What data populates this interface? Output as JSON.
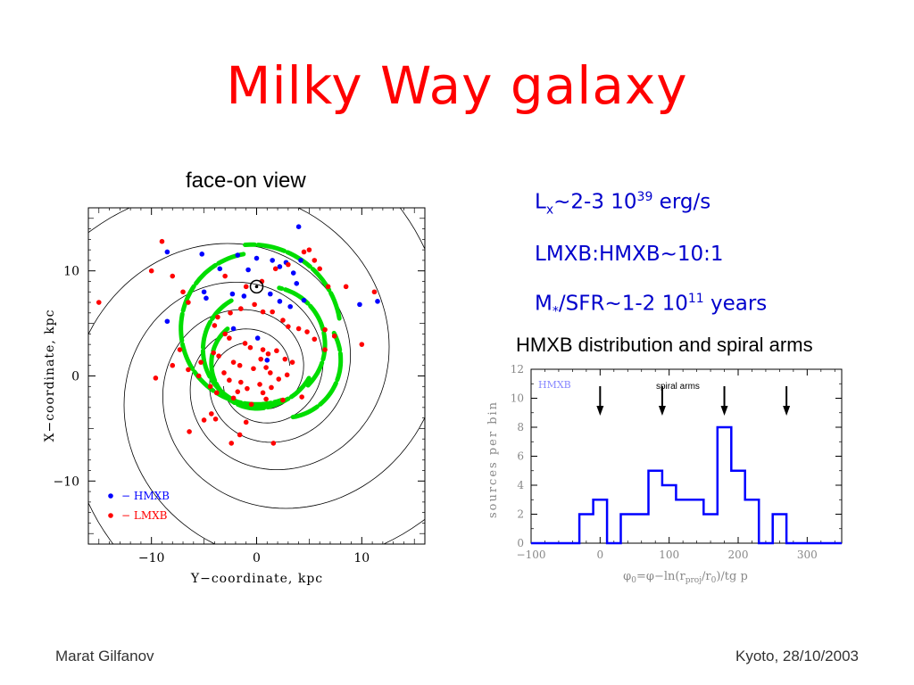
{
  "slide": {
    "title": "Milky Way galaxy",
    "left_heading": "face-on view",
    "right_heading": "HMXB distribution and spiral arms",
    "stats": {
      "line1_a": "L",
      "line1_sub": "x",
      "line1_b": "~2-3 10",
      "line1_sup": "39",
      "line1_c": " erg/s",
      "line2": "LMXB:HMXB~10:1",
      "line3_a": "M",
      "line3_sub": "*",
      "line3_b": "/SFR~1-2 10",
      "line3_sup": "11",
      "line3_c": " years"
    },
    "footer_left": "Marat Gilfanov",
    "footer_right": "Kyoto, 28/10/2003",
    "colors": {
      "title": "#ff0000",
      "stats": "#0000cc",
      "hmxb": "#0000ff",
      "lmxb": "#ff0000",
      "arm": "#00dd00"
    }
  },
  "chart_data": [
    {
      "type": "scatter",
      "xlabel": "Y−coordinate, kpc",
      "ylabel": "X−coordinate, kpc",
      "xlim": [
        -16,
        16
      ],
      "ylim": [
        -16,
        16
      ],
      "xticks": [
        -10,
        0,
        10
      ],
      "xtick_labels": [
        "−10",
        "0",
        "10"
      ],
      "yticks": [
        -10,
        0,
        10
      ],
      "ytick_labels": [
        "−10",
        "0",
        "10"
      ],
      "legend": [
        {
          "marker": "•",
          "label": "−  HMXB",
          "color": "#0000ff"
        },
        {
          "marker": "•",
          "label": "−  LMXB",
          "color": "#ff0000"
        }
      ],
      "legend_position": "bottom-left",
      "sun_marker": {
        "x": 0,
        "y": 8.5
      },
      "series": [
        {
          "name": "HMXB",
          "color": "#0000ff",
          "points": [
            [
              4,
              14.2
            ],
            [
              -8.5,
              11.8
            ],
            [
              -5.2,
              11.6
            ],
            [
              -1.8,
              11.5
            ],
            [
              0,
              11.2
            ],
            [
              1.5,
              11
            ],
            [
              2.8,
              10.8
            ],
            [
              4.2,
              11
            ],
            [
              -3.5,
              10.2
            ],
            [
              -0.8,
              10.1
            ],
            [
              2.2,
              10.4
            ],
            [
              3.5,
              9.8
            ],
            [
              -5,
              8
            ],
            [
              -4.8,
              7.4
            ],
            [
              -2.3,
              7.8
            ],
            [
              -1.2,
              7.6
            ],
            [
              1.3,
              7.8
            ],
            [
              2.2,
              7.1
            ],
            [
              4.5,
              7.2
            ],
            [
              -8.5,
              5.2
            ],
            [
              -2.2,
              4.5
            ],
            [
              0.1,
              3.6
            ],
            [
              3.2,
              6.6
            ],
            [
              1,
              1.5
            ],
            [
              9.8,
              6.8
            ],
            [
              11.5,
              7.1
            ],
            [
              3.8,
              8.8
            ]
          ]
        },
        {
          "name": "LMXB",
          "color": "#ff0000",
          "points": [
            [
              -9,
              12.8
            ],
            [
              -10,
              10
            ],
            [
              -8,
              9.5
            ],
            [
              -15,
              7
            ],
            [
              -7,
              8
            ],
            [
              -6.5,
              7
            ],
            [
              -3,
              9.5
            ],
            [
              -1,
              8.5
            ],
            [
              0.5,
              9
            ],
            [
              1.8,
              10.2
            ],
            [
              3,
              10.6
            ],
            [
              4.5,
              11.8
            ],
            [
              5,
              12
            ],
            [
              5.5,
              11
            ],
            [
              6,
              10.2
            ],
            [
              6.8,
              8.5
            ],
            [
              8.5,
              8.5
            ],
            [
              11.2,
              8
            ],
            [
              -2.5,
              6
            ],
            [
              -1.5,
              6.4
            ],
            [
              -0.2,
              6.8
            ],
            [
              0.6,
              6.1
            ],
            [
              1.5,
              6.1
            ],
            [
              2.5,
              5.3
            ],
            [
              3,
              4.7
            ],
            [
              4,
              4.5
            ],
            [
              4.8,
              4.2
            ],
            [
              5.5,
              3.5
            ],
            [
              6.5,
              2.5
            ],
            [
              7.4,
              3.8
            ],
            [
              10,
              3
            ],
            [
              6.5,
              4.4
            ],
            [
              -3.7,
              5.6
            ],
            [
              -4,
              4.8
            ],
            [
              -3,
              4
            ],
            [
              -2.6,
              3.6
            ],
            [
              -1.1,
              3.1
            ],
            [
              -0.6,
              2.7
            ],
            [
              0.6,
              2.5
            ],
            [
              1.1,
              2.1
            ],
            [
              1.9,
              2.4
            ],
            [
              2.7,
              1.6
            ],
            [
              3.4,
              1.3
            ],
            [
              -4.1,
              2.2
            ],
            [
              -3.6,
              1.9
            ],
            [
              -2.2,
              1.3
            ],
            [
              -1.6,
              1.0
            ],
            [
              -0.3,
              0.7
            ],
            [
              0.4,
              1.6
            ],
            [
              0.9,
              0.8
            ],
            [
              1.3,
              0.3
            ],
            [
              2.1,
              -0.3
            ],
            [
              2.9,
              0.1
            ],
            [
              -3.1,
              0.3
            ],
            [
              -2.6,
              -0.4
            ],
            [
              -1.5,
              -0.6
            ],
            [
              -0.9,
              -1.2
            ],
            [
              0.3,
              -0.8
            ],
            [
              0.6,
              -1.6
            ],
            [
              1.4,
              -1.1
            ],
            [
              -5.3,
              1.3
            ],
            [
              -6.5,
              0.6
            ],
            [
              -5.5,
              0
            ],
            [
              -4.4,
              -1
            ],
            [
              -3.8,
              -1.6
            ],
            [
              -2.2,
              -2.1
            ],
            [
              -0.5,
              -2.7
            ],
            [
              0.9,
              -2.2
            ],
            [
              2.5,
              -2.3
            ],
            [
              4.3,
              -2
            ],
            [
              -7.3,
              2.5
            ],
            [
              -8,
              1
            ],
            [
              -4.3,
              -3.6
            ],
            [
              -3.9,
              -4.1
            ],
            [
              -1.6,
              -5.6
            ],
            [
              -2.4,
              -6.4
            ],
            [
              -1,
              -4.4
            ],
            [
              1.6,
              -6.4
            ],
            [
              -9.6,
              -0.2
            ],
            [
              -1.8,
              -1.5
            ],
            [
              -5,
              -4.2
            ],
            [
              -6.4,
              -5.3
            ]
          ]
        }
      ],
      "spiral_arms_model": [
        {
          "name": "arm-outer-1"
        },
        {
          "name": "arm-outer-2"
        },
        {
          "name": "arm-outer-3"
        },
        {
          "name": "arm-outer-4"
        }
      ],
      "green_arm_segments": 6
    },
    {
      "type": "histogram",
      "series_label": "HMXB",
      "annotation": "spiral arms",
      "xlabel_parts": {
        "phi0": "φ",
        "phi0_sub": "0",
        "eq": "=φ−ln(r",
        "proj_sub": "proj",
        "div": "/r",
        "r0_sub": "0",
        "tail": ")/tg p"
      },
      "ylabel": "sources per bin",
      "xlim": [
        -100,
        350
      ],
      "ylim": [
        0,
        12
      ],
      "xticks": [
        -100,
        0,
        100,
        200,
        300
      ],
      "xtick_labels": [
        "−100",
        "0",
        "100",
        "200",
        "300"
      ],
      "yticks": [
        0,
        2,
        4,
        6,
        8,
        10,
        12
      ],
      "ytick_labels": [
        "0",
        "2",
        "4",
        "6",
        "8",
        "10",
        "12"
      ],
      "bin_width": 20,
      "bin_edges_start": -30,
      "bins": [
        [
          -100,
          -30,
          0
        ],
        [
          -30,
          -10,
          2
        ],
        [
          -10,
          10,
          3
        ],
        [
          10,
          30,
          0
        ],
        [
          30,
          70,
          2
        ],
        [
          70,
          90,
          5
        ],
        [
          90,
          110,
          4
        ],
        [
          110,
          150,
          3
        ],
        [
          150,
          170,
          2
        ],
        [
          170,
          190,
          8
        ],
        [
          190,
          210,
          5
        ],
        [
          210,
          230,
          3
        ],
        [
          230,
          250,
          0
        ],
        [
          250,
          270,
          2
        ],
        [
          270,
          350,
          0
        ]
      ],
      "arrow_positions": [
        0,
        90,
        180,
        270
      ],
      "color": "#0000ff"
    }
  ]
}
